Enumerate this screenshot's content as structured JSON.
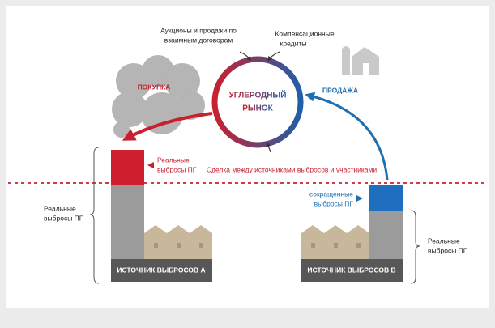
{
  "auction_label": [
    "Аукционы и продажи по",
    "взаимным договорам"
  ],
  "offset_label": [
    "Компенсационные",
    "кредиты"
  ],
  "market_label": [
    "УГЛЕРОДНЫЙ",
    "РЫНОК"
  ],
  "buy_label": "ПОКУПКА",
  "sell_label": "ПРОДАЖА",
  "actual_emissions_red": [
    "Реальные",
    "выбросы ПГ"
  ],
  "deal_label": "Сделка между источниками выбросов и участниками",
  "reduced_emissions": [
    "сокращенные",
    "выбросы ПГ"
  ],
  "left_emissions": [
    "Реальные",
    "выбросы ПГ"
  ],
  "right_emissions": [
    "Реальные",
    "выбросы ПГ"
  ],
  "source_a": "ИСТОЧНИК ВЫБРОСОВ А",
  "source_b": "ИСТОЧНИК ВЫБРОСОВ В"
}
